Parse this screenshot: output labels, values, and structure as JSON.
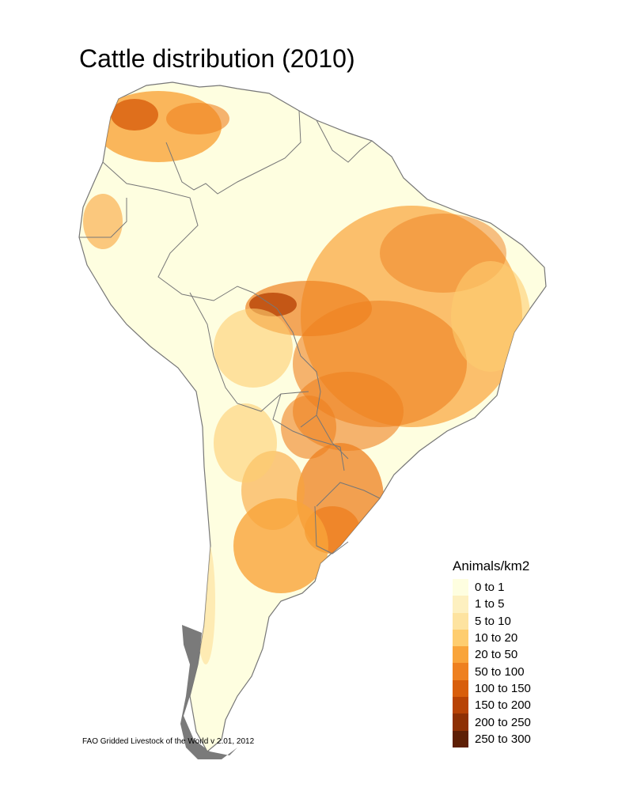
{
  "title": "Cattle distribution (2010)",
  "source": "FAO Gridded Livestock of the World v 2.01, 2012",
  "legend": {
    "title": "Animals/km2",
    "items": [
      {
        "label": "0 to 1",
        "color": "#fefee0"
      },
      {
        "label": "1 to 5",
        "color": "#fdf0c0"
      },
      {
        "label": "5 to 10",
        "color": "#fde3a0"
      },
      {
        "label": "10 to 20",
        "color": "#fecd6f"
      },
      {
        "label": "20 to 50",
        "color": "#f9a43a"
      },
      {
        "label": "50 to 100",
        "color": "#ee8020"
      },
      {
        "label": "100 to 150",
        "color": "#d85e0c"
      },
      {
        "label": "150 to 200",
        "color": "#b84305"
      },
      {
        "label": "200 to 250",
        "color": "#8e3004"
      },
      {
        "label": "250 to 300",
        "color": "#5e1f05"
      }
    ]
  }
}
